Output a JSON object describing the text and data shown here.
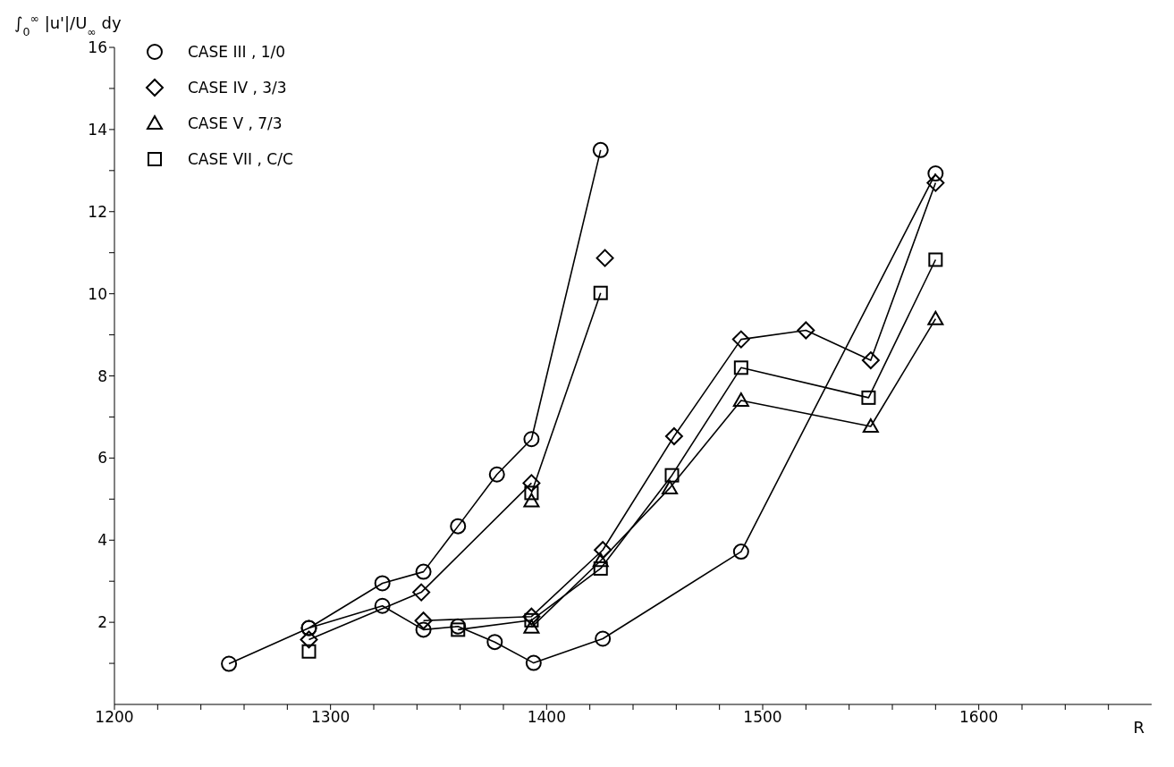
{
  "chart_data": {
    "type": "line",
    "xlabel": "R",
    "ylabel": "∫$_{0}$$^{∞}$ |u'|/U$_{∞}$ dy",
    "xlim": [
      1200,
      1680
    ],
    "xticks": [
      1200,
      {
        "value": 1220,
        "label": null
      },
      {
        "value": 1240,
        "label": null
      },
      {
        "value": 1260,
        "label": null
      },
      {
        "value": 1280,
        "label": null
      },
      1300,
      {
        "value": 1320,
        "label": null
      },
      {
        "value": 1340,
        "label": null
      },
      {
        "value": 1360,
        "label": null
      },
      {
        "value": 1380,
        "label": null
      },
      1400,
      {
        "value": 1420,
        "label": null
      },
      {
        "value": 1440,
        "label": null
      },
      {
        "value": 1460,
        "label": null
      },
      {
        "value": 1480,
        "label": null
      },
      1500,
      {
        "value": 1520,
        "label": null
      },
      {
        "value": 1540,
        "label": null
      },
      {
        "value": 1560,
        "label": null
      },
      {
        "value": 1580,
        "label": null
      },
      1600,
      {
        "value": 1620,
        "label": null
      },
      {
        "value": 1640,
        "label": null
      },
      {
        "value": 1660,
        "label": null
      }
    ],
    "ylim": [
      0,
      16
    ],
    "yticks": [
      {
        "value": 1,
        "label": null
      },
      2,
      {
        "value": 3,
        "label": null
      },
      4,
      {
        "value": 5,
        "label": null
      },
      6,
      {
        "value": 7,
        "label": null
      },
      8,
      {
        "value": 9,
        "label": null
      },
      10,
      {
        "value": 11,
        "label": null
      },
      12,
      {
        "value": 13,
        "label": null
      },
      14,
      {
        "value": 15,
        "label": null
      },
      16
    ],
    "grid": false,
    "legend": "top left",
    "line_style": "solid",
    "series": [
      {
        "name": "CASE III , 1/0",
        "color": "#000000",
        "marker": "circle",
        "x": [
          1253,
          1290,
          1324,
          1343,
          1359,
          1377,
          1393,
          1425
        ],
        "values": [
          0.99,
          1.86,
          2.95,
          3.23,
          4.34,
          5.6,
          6.46,
          13.5
        ]
      },
      {
        "color": "#000000",
        "marker": "circle",
        "x": [
          1290,
          1324,
          1343,
          1359,
          1376,
          1394,
          1426,
          1490,
          1580
        ],
        "values": [
          1.86,
          2.4,
          1.82,
          1.9,
          1.52,
          1.01,
          1.6,
          3.72,
          12.93
        ]
      },
      {
        "name": "CASE IV , 3/3",
        "color": "#000000",
        "marker": "diamond",
        "x": [
          1343,
          1393,
          1426,
          1459,
          1490,
          1520,
          1550,
          1580
        ],
        "values": [
          2.04,
          2.14,
          3.76,
          6.53,
          8.89,
          9.11,
          8.38,
          12.7
        ]
      },
      {
        "color": "#000000",
        "marker": "diamond",
        "x": [
          1290,
          1342,
          1393
        ],
        "values": [
          1.58,
          2.73,
          5.39
        ]
      },
      {
        "type": "scatter",
        "color": "#000000",
        "marker": "diamond",
        "x": [
          1427
        ],
        "values": [
          10.87
        ]
      },
      {
        "name": "CASE V , 7/3",
        "color": "#000000",
        "marker": "triangle",
        "x": [
          1393,
          1425,
          1457,
          1490,
          1550,
          1580
        ],
        "values": [
          1.88,
          3.5,
          5.27,
          7.4,
          6.77,
          9.39
        ]
      },
      {
        "type": "scatter",
        "color": "#000000",
        "marker": "triangle",
        "x": [
          1393
        ],
        "values": [
          4.95
        ]
      },
      {
        "name": "CASE VII , C/C",
        "color": "#000000",
        "marker": "square",
        "x": [
          1359,
          1393,
          1425,
          1458,
          1490,
          1549,
          1580
        ],
        "values": [
          1.82,
          2.05,
          3.31,
          5.58,
          8.2,
          7.47,
          10.83
        ]
      },
      {
        "color": "#000000",
        "marker": "square",
        "x": [
          1393,
          1425
        ],
        "values": [
          5.15,
          10.02
        ]
      },
      {
        "type": "scatter",
        "color": "#000000",
        "marker": "square",
        "x": [
          1290
        ],
        "values": [
          1.29
        ]
      }
    ]
  }
}
